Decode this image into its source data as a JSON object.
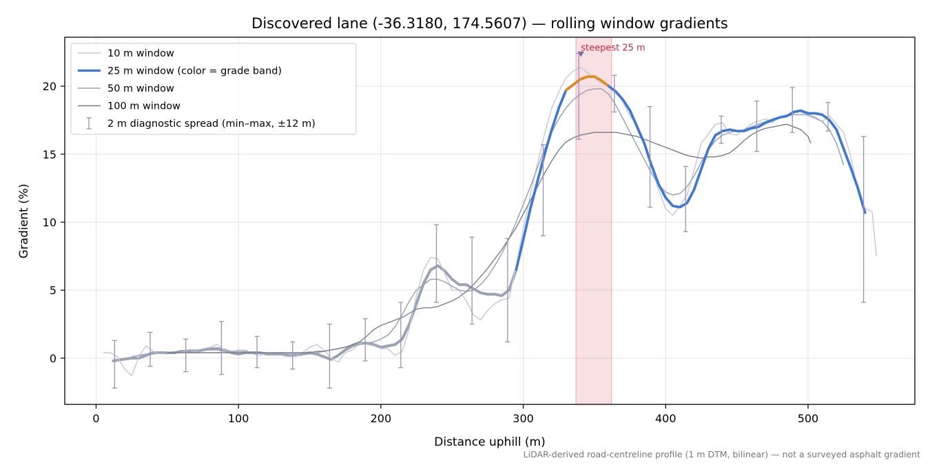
{
  "chart_data": {
    "type": "line",
    "title": "Discovered lane (-36.3180, 174.5607) — rolling window gradients",
    "xlabel": "Distance uphill (m)",
    "ylabel": "Gradient (%)",
    "xlim": [
      -22,
      575
    ],
    "ylim": [
      -3.4,
      23.6
    ],
    "xticks": [
      0,
      100,
      200,
      300,
      400,
      500
    ],
    "yticks": [
      0,
      5,
      10,
      15,
      20
    ],
    "grid": true,
    "legend_position": "top-left",
    "footnote": "LiDAR-derived road-centreline profile (1 m DTM, bilinear) — not a surveyed asphalt gradient",
    "highlight_band": {
      "x_range": [
        337,
        362
      ],
      "color": "#e8a0a8"
    },
    "annotation": {
      "text": "steepest 25 m",
      "x": 340,
      "y": 22.4,
      "color": "#c8283c"
    },
    "grade_band_colors": {
      "normal": "#3a78d4",
      "steep": "#e88a0a"
    },
    "steep_threshold": 20,
    "legend": [
      {
        "label": "10 m window",
        "color": "#c3c8d6"
      },
      {
        "label": "25 m window (color = grade band)",
        "color": "#3a78d4"
      },
      {
        "label": "50 m window",
        "color": "#9aa3b6"
      },
      {
        "label": "100 m window",
        "color": "#767c8e"
      },
      {
        "label": "2 m diagnostic spread (min–max, ±12 m)",
        "color": "#9a90b8"
      }
    ],
    "series": [
      {
        "name": "10 m window",
        "color": "#c3c8d6",
        "x": [
          5,
          10,
          15,
          20,
          25,
          30,
          35,
          40,
          45,
          50,
          55,
          60,
          65,
          70,
          75,
          80,
          85,
          90,
          95,
          100,
          105,
          110,
          115,
          120,
          125,
          130,
          135,
          140,
          145,
          150,
          155,
          160,
          165,
          170,
          175,
          180,
          185,
          190,
          195,
          200,
          205,
          210,
          215,
          220,
          225,
          230,
          235,
          240,
          245,
          250,
          255,
          260,
          265,
          270,
          275,
          280,
          285,
          290,
          295,
          300,
          305,
          310,
          315,
          320,
          325,
          330,
          335,
          340,
          345,
          350,
          355,
          360,
          365,
          370,
          375,
          380,
          385,
          390,
          395,
          400,
          405,
          410,
          415,
          420,
          425,
          430,
          435,
          440,
          445,
          450,
          455,
          460,
          465,
          470,
          475,
          480,
          485,
          490,
          495,
          500,
          505,
          510,
          515,
          520,
          525,
          530,
          535,
          540,
          545,
          548
        ],
        "y": [
          0.4,
          0.4,
          0.1,
          -0.8,
          -1.3,
          0.1,
          0.9,
          0.5,
          0.3,
          0.5,
          0.4,
          0.4,
          0.6,
          0.5,
          0.7,
          0.8,
          1.0,
          0.6,
          0.4,
          0.6,
          0.6,
          0.3,
          0.2,
          0.4,
          0.3,
          0.3,
          0.3,
          0.1,
          0.4,
          0.8,
          1.0,
          0.6,
          0.0,
          -0.3,
          0.4,
          0.6,
          1.1,
          1.0,
          0.9,
          0.7,
          0.7,
          0.2,
          0.5,
          2.2,
          4.6,
          6.5,
          7.4,
          7.3,
          6.2,
          5.0,
          5.0,
          4.2,
          3.2,
          2.8,
          3.5,
          4.0,
          4.3,
          4.4,
          6.8,
          9.5,
          12.0,
          14.3,
          16.5,
          18.4,
          19.6,
          20.6,
          21.1,
          21.4,
          21.0,
          20.6,
          20.2,
          20.0,
          19.6,
          18.8,
          17.8,
          17.0,
          16.0,
          14.0,
          12.4,
          11.0,
          10.5,
          11.2,
          12.0,
          13.8,
          15.8,
          16.5,
          17.2,
          17.3,
          16.5,
          16.4,
          16.8,
          17.2,
          17.4,
          17.6,
          17.3,
          17.8,
          17.9,
          18.1,
          18.1,
          17.8,
          17.6,
          17.4,
          17.8,
          17.2,
          16.6,
          14.8,
          12.4,
          11.0,
          10.8,
          7.5
        ]
      },
      {
        "name": "25 m window (color = grade band)",
        "color": "#3a78d4",
        "x": [
          12,
          18,
          25,
          30,
          35,
          40,
          45,
          50,
          55,
          60,
          65,
          70,
          75,
          80,
          85,
          90,
          95,
          100,
          105,
          110,
          115,
          120,
          125,
          130,
          135,
          140,
          145,
          150,
          155,
          160,
          165,
          170,
          175,
          180,
          185,
          190,
          195,
          200,
          205,
          210,
          215,
          220,
          225,
          230,
          235,
          240,
          245,
          250,
          255,
          260,
          265,
          270,
          275,
          280,
          285,
          290,
          295,
          300,
          305,
          310,
          315,
          320,
          325,
          330,
          335,
          340,
          345,
          350,
          355,
          360,
          365,
          370,
          375,
          380,
          385,
          390,
          395,
          400,
          405,
          410,
          415,
          420,
          425,
          430,
          435,
          440,
          445,
          450,
          455,
          460,
          465,
          470,
          475,
          480,
          485,
          490,
          495,
          500,
          505,
          510,
          515,
          520,
          525,
          530,
          535,
          540
        ],
        "y": [
          -0.2,
          -0.1,
          0.0,
          0.0,
          0.2,
          0.4,
          0.4,
          0.4,
          0.4,
          0.5,
          0.5,
          0.5,
          0.6,
          0.7,
          0.7,
          0.6,
          0.4,
          0.3,
          0.4,
          0.4,
          0.4,
          0.3,
          0.3,
          0.3,
          0.2,
          0.2,
          0.3,
          0.4,
          0.3,
          0.1,
          -0.1,
          0.2,
          0.6,
          0.9,
          1.1,
          1.1,
          1.0,
          0.8,
          0.9,
          1.0,
          1.4,
          2.5,
          4.0,
          5.5,
          6.5,
          6.8,
          6.4,
          5.8,
          5.4,
          5.4,
          5.1,
          4.8,
          4.7,
          4.7,
          4.6,
          5.0,
          6.5,
          8.7,
          11.0,
          13.0,
          15.0,
          16.8,
          18.4,
          19.7,
          20.1,
          20.5,
          20.7,
          20.7,
          20.4,
          20.0,
          19.6,
          19.0,
          18.2,
          17.0,
          15.8,
          14.2,
          12.8,
          11.8,
          11.2,
          11.1,
          11.4,
          12.4,
          13.9,
          15.4,
          16.4,
          16.7,
          16.8,
          16.7,
          16.7,
          16.9,
          17.0,
          17.3,
          17.5,
          17.7,
          17.8,
          18.1,
          18.2,
          18.0,
          18.0,
          17.9,
          17.5,
          16.8,
          15.4,
          14.0,
          12.5,
          10.7
        ]
      },
      {
        "name": "50 m window",
        "color": "#9aa3b6",
        "x": [
          25,
          30,
          35,
          40,
          45,
          50,
          55,
          60,
          65,
          70,
          75,
          80,
          85,
          90,
          95,
          100,
          105,
          110,
          115,
          120,
          125,
          130,
          135,
          140,
          145,
          150,
          155,
          160,
          165,
          170,
          175,
          180,
          185,
          190,
          195,
          200,
          205,
          210,
          215,
          220,
          225,
          230,
          235,
          240,
          245,
          250,
          255,
          260,
          265,
          270,
          275,
          280,
          285,
          290,
          295,
          300,
          305,
          310,
          315,
          320,
          325,
          330,
          335,
          340,
          345,
          350,
          355,
          360,
          365,
          370,
          375,
          380,
          385,
          390,
          395,
          400,
          405,
          410,
          415,
          420,
          425,
          430,
          435,
          440,
          445,
          450,
          455,
          460,
          465,
          470,
          475,
          480,
          485,
          490,
          495,
          500,
          505,
          510,
          515,
          520,
          525
        ],
        "y": [
          0.1,
          0.2,
          0.3,
          0.3,
          0.4,
          0.4,
          0.4,
          0.5,
          0.6,
          0.6,
          0.6,
          0.6,
          0.6,
          0.5,
          0.5,
          0.5,
          0.5,
          0.4,
          0.4,
          0.3,
          0.3,
          0.3,
          0.3,
          0.3,
          0.3,
          0.3,
          0.4,
          0.5,
          0.6,
          0.7,
          0.8,
          0.9,
          1.0,
          1.1,
          1.2,
          1.4,
          1.7,
          2.3,
          3.2,
          4.2,
          5.0,
          5.4,
          5.8,
          5.8,
          5.6,
          5.3,
          5.0,
          4.9,
          5.0,
          5.4,
          6.0,
          6.8,
          7.7,
          8.8,
          10.0,
          11.3,
          12.6,
          14.0,
          15.4,
          16.6,
          17.6,
          18.4,
          19.0,
          19.4,
          19.7,
          19.8,
          19.8,
          19.4,
          18.6,
          17.6,
          16.6,
          15.6,
          14.6,
          13.6,
          12.8,
          12.2,
          12.0,
          12.1,
          12.6,
          13.4,
          14.4,
          15.3,
          16.0,
          16.4,
          16.6,
          16.7,
          16.8,
          17.0,
          17.2,
          17.4,
          17.6,
          17.7,
          17.8,
          17.9,
          17.9,
          17.9,
          17.7,
          17.4,
          16.8,
          15.8,
          14.2
        ]
      },
      {
        "name": "100 m window",
        "color": "#767c8e",
        "x": [
          50,
          55,
          60,
          65,
          70,
          75,
          80,
          85,
          90,
          95,
          100,
          105,
          110,
          115,
          120,
          125,
          130,
          135,
          140,
          145,
          150,
          155,
          160,
          165,
          170,
          175,
          180,
          185,
          190,
          195,
          200,
          205,
          210,
          215,
          220,
          225,
          230,
          235,
          240,
          245,
          250,
          255,
          260,
          265,
          270,
          275,
          280,
          285,
          290,
          295,
          300,
          305,
          310,
          315,
          320,
          325,
          330,
          335,
          340,
          345,
          350,
          355,
          360,
          365,
          370,
          375,
          380,
          385,
          390,
          395,
          400,
          405,
          410,
          415,
          420,
          425,
          430,
          435,
          440,
          445,
          450,
          455,
          460,
          465,
          470,
          475,
          480,
          485,
          490,
          495,
          500,
          502
        ],
        "y": [
          0.4,
          0.4,
          0.4,
          0.4,
          0.4,
          0.4,
          0.4,
          0.4,
          0.4,
          0.4,
          0.4,
          0.4,
          0.4,
          0.4,
          0.4,
          0.4,
          0.4,
          0.4,
          0.4,
          0.4,
          0.4,
          0.5,
          0.5,
          0.6,
          0.7,
          0.8,
          1.0,
          1.2,
          1.6,
          2.1,
          2.4,
          2.6,
          2.8,
          3.0,
          3.3,
          3.6,
          3.7,
          3.7,
          3.8,
          4.0,
          4.2,
          4.5,
          4.9,
          5.4,
          6.0,
          6.6,
          7.3,
          8.0,
          8.8,
          9.6,
          10.6,
          11.6,
          12.6,
          13.6,
          14.5,
          15.3,
          15.9,
          16.2,
          16.4,
          16.5,
          16.6,
          16.6,
          16.6,
          16.6,
          16.5,
          16.4,
          16.3,
          16.1,
          15.9,
          15.7,
          15.5,
          15.3,
          15.1,
          14.9,
          14.8,
          14.7,
          14.8,
          14.8,
          14.9,
          15.1,
          15.5,
          16.0,
          16.4,
          16.7,
          16.9,
          17.0,
          17.1,
          17.2,
          17.0,
          16.8,
          16.3,
          15.8
        ]
      }
    ],
    "error_bars": {
      "name": "2 m diagnostic spread (min–max, ±12 m)",
      "color": "#9a90b8",
      "x": [
        13,
        38,
        63,
        88,
        113,
        138,
        164,
        189,
        214,
        239,
        264,
        289,
        314,
        339,
        364,
        389,
        414,
        439,
        464,
        489,
        514,
        539
      ],
      "ymin": [
        -2.2,
        -0.6,
        -1.0,
        -1.2,
        -0.7,
        -0.8,
        -2.2,
        -0.2,
        -0.7,
        4.1,
        2.5,
        1.2,
        9.0,
        16.1,
        18.1,
        11.1,
        9.3,
        15.8,
        15.2,
        16.6,
        16.7,
        4.1
      ],
      "ymax": [
        1.3,
        1.9,
        1.4,
        2.7,
        1.6,
        1.2,
        2.5,
        2.9,
        4.1,
        9.8,
        8.9,
        8.8,
        15.7,
        22.4,
        20.8,
        18.5,
        14.1,
        17.8,
        18.9,
        19.9,
        18.8,
        16.3
      ]
    }
  }
}
